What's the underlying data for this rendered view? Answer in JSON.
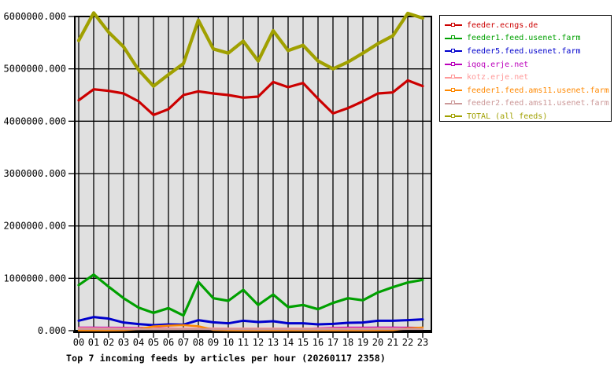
{
  "chart_data": {
    "type": "line",
    "title": "Top 7 incoming feeds by articles per hour (20260117 2358)",
    "xlabel": "",
    "ylabel": "",
    "ylim": [
      0,
      6000000
    ],
    "grid": true,
    "plot_bg": "#e0e0e0",
    "grid_color": "#000000",
    "legend_position": "outside-top-right",
    "categories": [
      "00",
      "01",
      "02",
      "03",
      "04",
      "05",
      "06",
      "07",
      "08",
      "09",
      "10",
      "11",
      "12",
      "13",
      "14",
      "15",
      "16",
      "17",
      "18",
      "19",
      "20",
      "21",
      "22",
      "23"
    ],
    "y_tick_values": [
      0,
      1000000,
      2000000,
      3000000,
      4000000,
      5000000,
      6000000
    ],
    "y_tick_labels": [
      "0.000",
      "1000000.000",
      "2000000.000",
      "3000000.000",
      "4000000.000",
      "5000000.000",
      "6000000.000"
    ],
    "series": [
      {
        "name": "feeder.ecngs.de",
        "color": "#cc0000",
        "width": 3.2,
        "values": [
          4400000,
          4610000,
          4580000,
          4530000,
          4380000,
          4120000,
          4230000,
          4500000,
          4570000,
          4530000,
          4500000,
          4450000,
          4470000,
          4750000,
          4650000,
          4730000,
          4430000,
          4150000,
          4250000,
          4380000,
          4530000,
          4550000,
          4780000,
          4670000
        ]
      },
      {
        "name": "feeder1.feed.usenet.farm",
        "color": "#00a000",
        "width": 3.2,
        "values": [
          870000,
          1070000,
          840000,
          620000,
          440000,
          340000,
          430000,
          290000,
          930000,
          620000,
          570000,
          780000,
          490000,
          690000,
          450000,
          490000,
          410000,
          530000,
          620000,
          580000,
          730000,
          830000,
          920000,
          970000
        ]
      },
      {
        "name": "feeder5.feed.usenet.farm",
        "color": "#0000cc",
        "width": 3.0,
        "values": [
          190000,
          260000,
          230000,
          155000,
          125000,
          105000,
          120000,
          115000,
          200000,
          160000,
          140000,
          190000,
          165000,
          180000,
          140000,
          140000,
          120000,
          130000,
          150000,
          155000,
          190000,
          190000,
          200000,
          215000
        ]
      },
      {
        "name": "iqoq.erje.net",
        "color": "#bb00bb",
        "width": 1.8,
        "values": [
          65000,
          65000,
          63000,
          62000,
          58000,
          55000,
          50000,
          45000,
          42000,
          40000,
          36000,
          34000,
          34000,
          34000,
          35000,
          40000,
          50000,
          60000,
          63000,
          64000,
          65000,
          65000,
          63000,
          60000
        ]
      },
      {
        "name": "kotz.erje.net",
        "color": "#ff9999",
        "width": 2.5,
        "values": [
          48000,
          46000,
          45000,
          44000,
          43000,
          42000,
          42000,
          43000,
          44000,
          43000,
          42000,
          42000,
          41000,
          42000,
          42000,
          41000,
          40000,
          41000,
          42000,
          42000,
          43000,
          43000,
          44000,
          45000
        ]
      },
      {
        "name": "feeder1.feed.ams11.usenet.farm",
        "color": "#ff8800",
        "width": 2.5,
        "values": [
          5000,
          5000,
          6000,
          10000,
          30000,
          80000,
          95000,
          105000,
          85000,
          15000,
          8000,
          6000,
          6000,
          6000,
          5000,
          5000,
          5000,
          6000,
          6000,
          6000,
          8000,
          10000,
          45000,
          60000
        ]
      },
      {
        "name": "feeder2.feed.ams11.usenet.farm",
        "color": "#cc9999",
        "width": 2.5,
        "values": [
          32000,
          31000,
          30000,
          30000,
          29000,
          28000,
          28000,
          29000,
          30000,
          29000,
          28000,
          28000,
          27000,
          28000,
          28000,
          27000,
          27000,
          28000,
          28000,
          29000,
          30000,
          30000,
          31000,
          32000
        ]
      },
      {
        "name": "TOTAL (all feeds)",
        "color": "#a0a000",
        "width": 4.2,
        "values": [
          5540000,
          6070000,
          5700000,
          5420000,
          4980000,
          4670000,
          4890000,
          5100000,
          5930000,
          5380000,
          5300000,
          5530000,
          5150000,
          5730000,
          5350000,
          5450000,
          5150000,
          5000000,
          5130000,
          5300000,
          5480000,
          5630000,
          6060000,
          5970000
        ]
      }
    ]
  }
}
